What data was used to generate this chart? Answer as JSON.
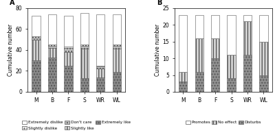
{
  "chart_a": {
    "categories": [
      "M",
      "B",
      "F",
      "S",
      "WR",
      "WL"
    ],
    "extremely_dislike": [
      0,
      0,
      0,
      0,
      0,
      0
    ],
    "slightly_dislike": [
      1,
      1,
      1,
      1,
      1,
      1
    ],
    "dont_care": [
      2,
      2,
      4,
      3,
      2,
      3
    ],
    "slightly_like": [
      20,
      9,
      13,
      28,
      8,
      22
    ],
    "extremely_like": [
      30,
      33,
      25,
      13,
      14,
      19
    ],
    "top_white": [
      20,
      29,
      30,
      30,
      49,
      29
    ],
    "ylim": [
      0,
      80
    ],
    "yticks": [
      0,
      20,
      40,
      60,
      80
    ],
    "ylabel": "Cumulative number",
    "label": "A",
    "legend_labels": [
      "Extremely dislike",
      "Slightly dislike",
      "Don't care",
      "Slightly like",
      "Extremely like"
    ]
  },
  "chart_b": {
    "categories": [
      "M",
      "B",
      "F",
      "S",
      "WR",
      "WL"
    ],
    "disturbs": [
      3,
      6,
      10,
      4,
      11,
      5
    ],
    "no_effect": [
      3,
      10,
      6,
      7,
      10,
      10
    ],
    "promotes": [
      17,
      7,
      7,
      12,
      2,
      8
    ],
    "ylim": [
      0,
      25
    ],
    "yticks": [
      0,
      5,
      10,
      15,
      20,
      25
    ],
    "ylabel": "Cumulative number",
    "label": "B",
    "legend_labels": [
      "Promotes",
      "No effect",
      "Disturbs"
    ]
  },
  "colors_a": {
    "extremely_dislike": "#ffffff",
    "slightly_dislike": "#ffffff",
    "dont_care": "#c8c8c8",
    "slightly_like": "#e0e0e0",
    "extremely_like": "#909090",
    "top_white": "#ffffff"
  },
  "hatches_a": {
    "extremely_dislike": "",
    "slightly_dislike": "....",
    "dont_care": "....",
    "slightly_like": "||||",
    "extremely_like": "....",
    "top_white": ""
  },
  "ec_a": {
    "extremely_dislike": "#888888",
    "slightly_dislike": "#888888",
    "dont_care": "#888888",
    "slightly_like": "#888888",
    "extremely_like": "#888888",
    "top_white": "#888888"
  },
  "colors_b": {
    "disturbs": "#909090",
    "no_effect": "#c8c8c8",
    "promotes": "#ffffff"
  },
  "hatches_b": {
    "disturbs": "....",
    "no_effect": "||||",
    "promotes": ""
  }
}
